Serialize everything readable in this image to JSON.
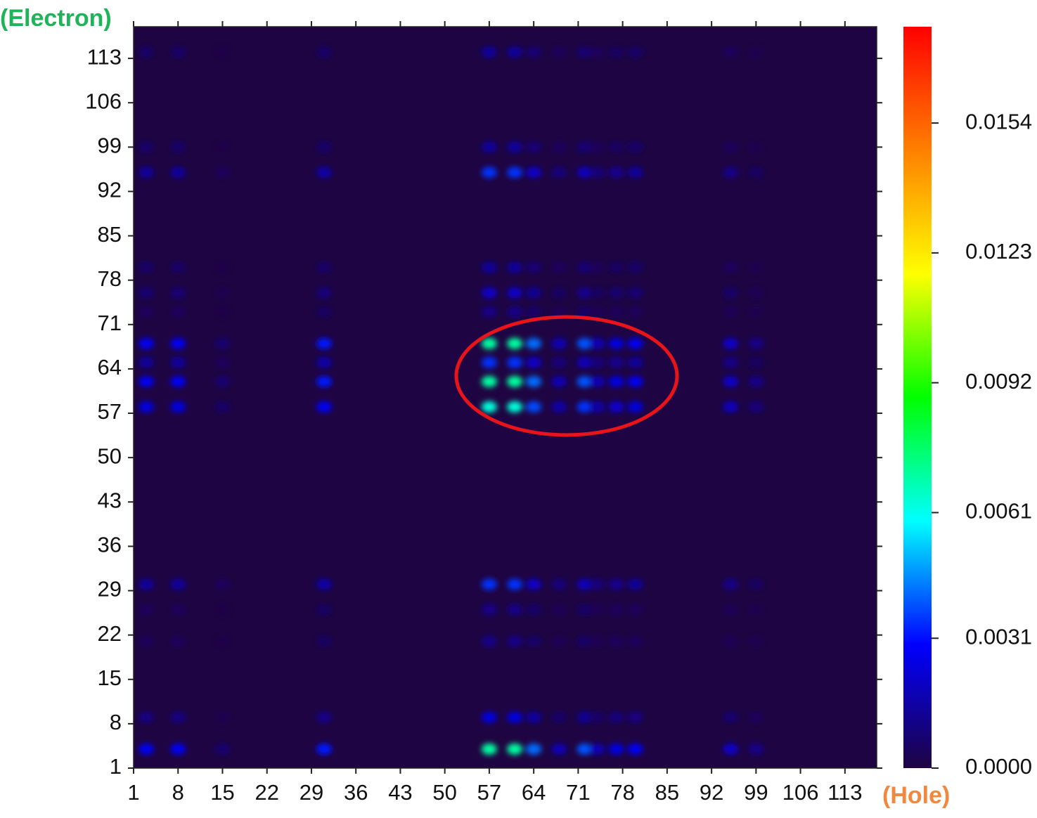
{
  "chart_data": {
    "type": "heatmap",
    "y_label": "(Electron)",
    "x_label": "(Hole)",
    "x": [
      3,
      8,
      15,
      31,
      57,
      61,
      64,
      68,
      72,
      74,
      77,
      80,
      95,
      99
    ],
    "y": [
      4,
      9,
      21,
      26,
      30,
      58,
      62,
      65,
      68,
      73,
      76,
      80,
      95,
      99,
      114
    ],
    "values": [
      [
        0.0028,
        0.0028,
        0.0007,
        0.0032,
        0.007,
        0.007,
        0.0042,
        0.0018,
        0.0039,
        0.0018,
        0.0025,
        0.0028,
        0.0021,
        0.0011
      ],
      [
        0.001,
        0.001,
        0.0002,
        0.0011,
        0.0025,
        0.0025,
        0.0015,
        0.0006,
        0.0013,
        0.0006,
        0.0009,
        0.001,
        0.0007,
        0.0004
      ],
      [
        0.0004,
        0.0004,
        0.0001,
        0.0005,
        0.0011,
        0.0011,
        0.0006,
        0.0003,
        0.0006,
        0.0003,
        0.0004,
        0.0004,
        0.0003,
        0.0002
      ],
      [
        0.0004,
        0.0004,
        0.0001,
        0.0005,
        0.0011,
        0.0011,
        0.0006,
        0.0003,
        0.0006,
        0.0003,
        0.0004,
        0.0004,
        0.0003,
        0.0002
      ],
      [
        0.0014,
        0.0014,
        0.0004,
        0.0016,
        0.0035,
        0.0035,
        0.0021,
        0.0009,
        0.0019,
        0.0009,
        0.0012,
        0.0014,
        0.0011,
        0.0005
      ],
      [
        0.0025,
        0.0025,
        0.0006,
        0.0028,
        0.0063,
        0.0063,
        0.0038,
        0.0016,
        0.0035,
        0.0016,
        0.0022,
        0.0025,
        0.0019,
        0.0009
      ],
      [
        0.0028,
        0.0028,
        0.0007,
        0.0032,
        0.007,
        0.007,
        0.0042,
        0.0018,
        0.0039,
        0.0018,
        0.0025,
        0.0028,
        0.0021,
        0.0011
      ],
      [
        0.0014,
        0.0014,
        0.0004,
        0.0016,
        0.0035,
        0.0035,
        0.0021,
        0.0009,
        0.0019,
        0.0009,
        0.0012,
        0.0014,
        0.0011,
        0.0005
      ],
      [
        0.0028,
        0.0028,
        0.0007,
        0.0032,
        0.007,
        0.007,
        0.0042,
        0.0018,
        0.0039,
        0.0018,
        0.0025,
        0.0028,
        0.0021,
        0.0011
      ],
      [
        0.0004,
        0.0004,
        0.0001,
        0.0005,
        0.0011,
        0.0011,
        0.0006,
        0.0003,
        0.0006,
        0.0003,
        0.0004,
        0.0004,
        0.0003,
        0.0002
      ],
      [
        0.0008,
        0.0008,
        0.0002,
        0.0009,
        0.0021,
        0.0021,
        0.0013,
        0.0005,
        0.0012,
        0.0005,
        0.0007,
        0.0008,
        0.0006,
        0.0003
      ],
      [
        0.0006,
        0.0006,
        0.0001,
        0.0006,
        0.0014,
        0.0014,
        0.0008,
        0.0004,
        0.0008,
        0.0004,
        0.0005,
        0.0006,
        0.0004,
        0.0002
      ],
      [
        0.0014,
        0.0014,
        0.0004,
        0.0016,
        0.0035,
        0.0035,
        0.0021,
        0.0009,
        0.0019,
        0.0009,
        0.0012,
        0.0014,
        0.0011,
        0.0005
      ],
      [
        0.0006,
        0.0006,
        0.0001,
        0.0006,
        0.0014,
        0.0014,
        0.0008,
        0.0004,
        0.0008,
        0.0004,
        0.0005,
        0.0006,
        0.0004,
        0.0002
      ],
      [
        0.0006,
        0.0006,
        0.0001,
        0.0006,
        0.0014,
        0.0014,
        0.0008,
        0.0004,
        0.0008,
        0.0004,
        0.0005,
        0.0006,
        0.0004,
        0.0002
      ]
    ],
    "xlim": [
      1,
      118
    ],
    "ylim": [
      1,
      118
    ],
    "xticks": [
      1,
      8,
      15,
      22,
      29,
      36,
      43,
      50,
      57,
      64,
      71,
      78,
      85,
      92,
      99,
      106,
      113
    ],
    "yticks": [
      1,
      8,
      15,
      22,
      29,
      36,
      43,
      50,
      57,
      64,
      71,
      78,
      85,
      92,
      99,
      106,
      113
    ],
    "clim": [
      0,
      0.0177
    ],
    "cticks": [
      {
        "value": 0,
        "label": "0.0000"
      },
      0.0031,
      0.0061,
      0.0092,
      0.0123,
      0.0154
    ],
    "colormap": [
      "#1e0442",
      "#0000ff",
      "#00ffff",
      "#00ff00",
      "#ffff00",
      "#ff8000",
      "#ff0000"
    ],
    "y_label_color": "#1fb35a",
    "x_label_color": "#f0883e"
  }
}
